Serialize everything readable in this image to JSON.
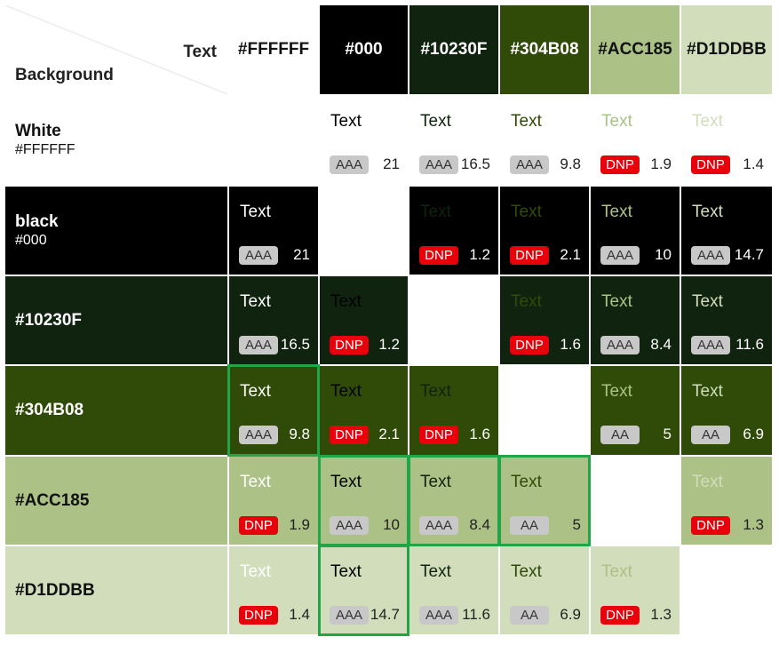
{
  "corner": {
    "text_label": "Text",
    "background_label": "Background"
  },
  "columns": [
    {
      "label": "#FFFFFF",
      "bg": "#FFFFFF",
      "fg": "#111111"
    },
    {
      "label": "#000",
      "bg": "#000000",
      "fg": "#FFFFFF"
    },
    {
      "label": "#10230F",
      "bg": "#10230F",
      "fg": "#FFFFFF"
    },
    {
      "label": "#304B08",
      "bg": "#304B08",
      "fg": "#FFFFFF"
    },
    {
      "label": "#ACC185",
      "bg": "#ACC185",
      "fg": "#111111"
    },
    {
      "label": "#D1DDBB",
      "bg": "#D1DDBB",
      "fg": "#111111"
    }
  ],
  "text_colors": [
    "#FFFFFF",
    "#000000",
    "#10230F",
    "#304B08",
    "#ACC185",
    "#D1DDBB"
  ],
  "rows": [
    {
      "name": "White",
      "hex": "#FFFFFF",
      "bg": "#FFFFFF",
      "fg": "#111111",
      "cells": [
        null,
        {
          "sample": "Text",
          "badge": "AAA",
          "ratio": "21",
          "ratio_color": "#222222"
        },
        {
          "sample": "Text",
          "badge": "AAA",
          "ratio": "16.5",
          "ratio_color": "#222222"
        },
        {
          "sample": "Text",
          "badge": "AAA",
          "ratio": "9.8",
          "ratio_color": "#222222"
        },
        {
          "sample": "Text",
          "badge": "DNP",
          "ratio": "1.9",
          "ratio_color": "#222222"
        },
        {
          "sample": "Text",
          "badge": "DNP",
          "ratio": "1.4",
          "ratio_color": "#222222"
        }
      ]
    },
    {
      "name": "black",
      "hex": "#000",
      "bg": "#000000",
      "fg": "#FFFFFF",
      "cells": [
        {
          "sample": "Text",
          "badge": "AAA",
          "ratio": "21",
          "ratio_color": "#FFFFFF"
        },
        null,
        {
          "sample": "Text",
          "badge": "DNP",
          "ratio": "1.2",
          "ratio_color": "#FFFFFF"
        },
        {
          "sample": "Text",
          "badge": "DNP",
          "ratio": "2.1",
          "ratio_color": "#FFFFFF"
        },
        {
          "sample": "Text",
          "badge": "AAA",
          "ratio": "10",
          "ratio_color": "#FFFFFF"
        },
        {
          "sample": "Text",
          "badge": "AAA",
          "ratio": "14.7",
          "ratio_color": "#FFFFFF"
        }
      ]
    },
    {
      "name": "#10230F",
      "hex": "",
      "bg": "#10230F",
      "fg": "#FFFFFF",
      "cells": [
        {
          "sample": "Text",
          "badge": "AAA",
          "ratio": "16.5",
          "ratio_color": "#FFFFFF"
        },
        {
          "sample": "Text",
          "badge": "DNP",
          "ratio": "1.2",
          "ratio_color": "#FFFFFF"
        },
        null,
        {
          "sample": "Text",
          "badge": "DNP",
          "ratio": "1.6",
          "ratio_color": "#FFFFFF"
        },
        {
          "sample": "Text",
          "badge": "AAA",
          "ratio": "8.4",
          "ratio_color": "#FFFFFF"
        },
        {
          "sample": "Text",
          "badge": "AAA",
          "ratio": "11.6",
          "ratio_color": "#FFFFFF"
        }
      ]
    },
    {
      "name": "#304B08",
      "hex": "",
      "bg": "#304B08",
      "fg": "#FFFFFF",
      "cells": [
        {
          "sample": "Text",
          "badge": "AAA",
          "ratio": "9.8",
          "ratio_color": "#FFFFFF"
        },
        {
          "sample": "Text",
          "badge": "DNP",
          "ratio": "2.1",
          "ratio_color": "#FFFFFF"
        },
        {
          "sample": "Text",
          "badge": "DNP",
          "ratio": "1.6",
          "ratio_color": "#FFFFFF"
        },
        null,
        {
          "sample": "Text",
          "badge": "AA",
          "ratio": "5",
          "ratio_color": "#FFFFFF"
        },
        {
          "sample": "Text",
          "badge": "AA",
          "ratio": "6.9",
          "ratio_color": "#FFFFFF"
        }
      ]
    },
    {
      "name": "#ACC185",
      "hex": "",
      "bg": "#ACC185",
      "fg": "#111111",
      "cells": [
        {
          "sample": "Text",
          "badge": "DNP",
          "ratio": "1.9",
          "ratio_color": "#222222"
        },
        {
          "sample": "Text",
          "badge": "AAA",
          "ratio": "10",
          "ratio_color": "#222222"
        },
        {
          "sample": "Text",
          "badge": "AAA",
          "ratio": "8.4",
          "ratio_color": "#222222"
        },
        {
          "sample": "Text",
          "badge": "AA",
          "ratio": "5",
          "ratio_color": "#222222"
        },
        null,
        {
          "sample": "Text",
          "badge": "DNP",
          "ratio": "1.3",
          "ratio_color": "#222222"
        }
      ]
    },
    {
      "name": "#D1DDBB",
      "hex": "",
      "bg": "#D1DDBB",
      "fg": "#111111",
      "cells": [
        {
          "sample": "Text",
          "badge": "DNP",
          "ratio": "1.4",
          "ratio_color": "#222222"
        },
        {
          "sample": "Text",
          "badge": "AAA",
          "ratio": "14.7",
          "ratio_color": "#222222"
        },
        {
          "sample": "Text",
          "badge": "AAA",
          "ratio": "11.6",
          "ratio_color": "#222222"
        },
        {
          "sample": "Text",
          "badge": "AA",
          "ratio": "6.9",
          "ratio_color": "#222222"
        },
        {
          "sample": "Text",
          "badge": "DNP",
          "ratio": "1.3",
          "ratio_color": "#222222"
        },
        null
      ]
    }
  ],
  "highlighted_cells": [
    [
      3,
      0
    ],
    [
      4,
      1
    ],
    [
      4,
      2
    ],
    [
      4,
      3
    ],
    [
      5,
      1
    ]
  ],
  "colors": {
    "highlight": "#22A447",
    "fail_badge": "#E8000B",
    "pass_badge": "#C8C8C8"
  }
}
